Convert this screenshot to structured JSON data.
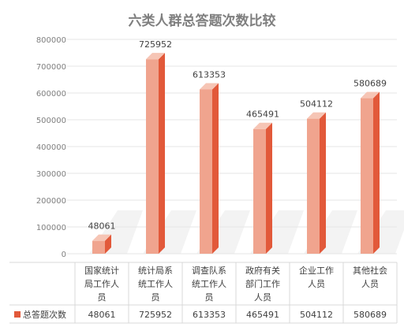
{
  "chart_data": {
    "type": "bar",
    "title": "六类人群总答题次数比较",
    "categories": [
      [
        "国家统计",
        "局工作人",
        "员"
      ],
      [
        "统计局系",
        "统工作人",
        "员"
      ],
      [
        "调查队系",
        "统工作人",
        "员"
      ],
      [
        "政府有关",
        "部门工作",
        "人员"
      ],
      [
        "企业工作",
        "人员"
      ],
      [
        "其他社会",
        "人员"
      ]
    ],
    "series": [
      {
        "name": "总答题次数",
        "values": [
          48061,
          725952,
          613353,
          465491,
          504112,
          580689
        ]
      }
    ],
    "data_labels": [
      "48061",
      "725952",
      "613353",
      "465491",
      "504112",
      "580689"
    ],
    "ylim": [
      0,
      800000
    ],
    "yticks": [
      "0",
      "100000",
      "200000",
      "300000",
      "400000",
      "500000",
      "600000",
      "700000",
      "800000"
    ],
    "table": {
      "row_label": "总答题次数",
      "values": [
        "48061",
        "725952",
        "613353",
        "465491",
        "504112",
        "580689"
      ]
    },
    "colors": {
      "bar_front": "#f0a48e",
      "bar_side": "#e2593a",
      "bar_top": "#f6c5b5",
      "title": "#7f7f7f",
      "axis_text": "#7f7f7f",
      "label_text": "#404040",
      "grid": "#e6e6e6",
      "table_line": "#d9d9d9",
      "floor_shadow": "#e9e9e9"
    },
    "grid": true,
    "legend_position": "bottom-left in data table"
  }
}
